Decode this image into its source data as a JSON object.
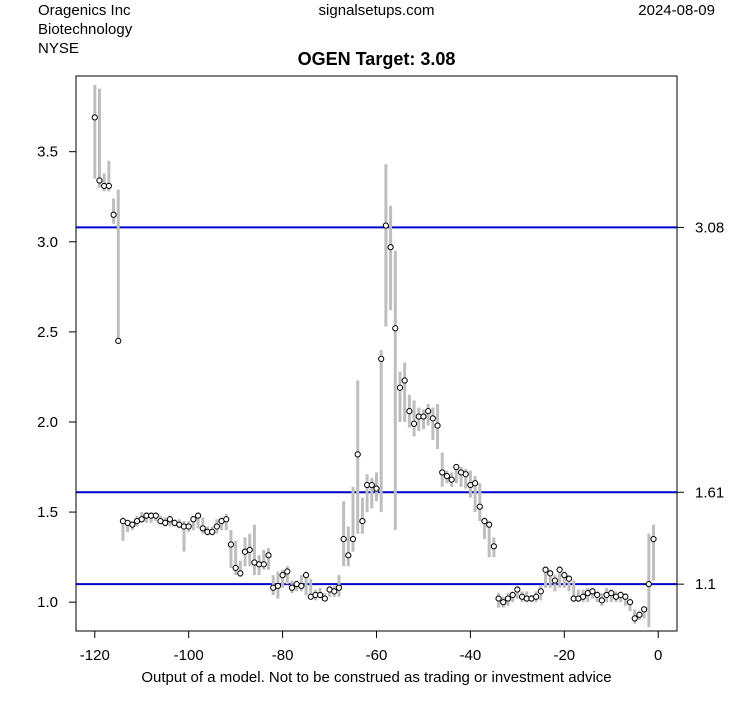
{
  "header": {
    "company": "Oragenics Inc",
    "sector": "Biotechnology",
    "exchange": "NYSE",
    "site": "signalsetups.com",
    "date": "2024-08-09"
  },
  "footer": {
    "caption": "Output of a model. Not to be construed as trading or investment advice"
  },
  "chart_data": {
    "type": "scatter",
    "title": "OGEN Target: 3.08",
    "xlabel": "",
    "ylabel": "",
    "xlim": [
      -124,
      4
    ],
    "ylim": [
      0.84,
      3.92
    ],
    "x_ticks": [
      -120,
      -100,
      -80,
      -60,
      -40,
      -20,
      0
    ],
    "y_ticks": [
      1.0,
      1.5,
      2.0,
      2.5,
      3.0,
      3.5
    ],
    "y_tick_labels": [
      "1.0",
      "1.5",
      "2.0",
      "2.5",
      "3.0",
      "3.5"
    ],
    "grid": false,
    "colors": {
      "range_bar": "#bebebe",
      "level_line": "#0000cd",
      "point": "#000000"
    },
    "levels": [
      {
        "value": 3.08,
        "label": "3.08"
      },
      {
        "value": 1.61,
        "label": "1.61"
      },
      {
        "value": 1.1,
        "label": "1.1"
      }
    ],
    "series": [
      {
        "x": [
          -120,
          -119,
          -118,
          -117,
          -116,
          -115,
          -114,
          -113,
          -112,
          -111,
          -110,
          -109,
          -108,
          -107,
          -106,
          -105,
          -104,
          -103,
          -102,
          -101,
          -100,
          -99,
          -98,
          -97,
          -96,
          -95,
          -94,
          -93,
          -92,
          -91,
          -90,
          -89,
          -88,
          -87,
          -86,
          -85,
          -84,
          -83,
          -82,
          -81,
          -80,
          -79,
          -78,
          -77,
          -76,
          -75,
          -74,
          -73,
          -72,
          -71,
          -70,
          -69,
          -68,
          -67,
          -66,
          -65,
          -64,
          -63,
          -62,
          -61,
          -60,
          -59,
          -58,
          -57,
          -56,
          -55,
          -54,
          -53,
          -52,
          -51,
          -50,
          -49,
          -48,
          -47,
          -46,
          -45,
          -44,
          -43,
          -42,
          -41,
          -40,
          -39,
          -38,
          -37,
          -36,
          -35,
          -34,
          -33,
          -32,
          -31,
          -30,
          -29,
          -28,
          -27,
          -26,
          -25,
          -24,
          -23,
          -22,
          -21,
          -20,
          -19,
          -18,
          -17,
          -16,
          -15,
          -14,
          -13,
          -12,
          -11,
          -10,
          -9,
          -8,
          -7,
          -6,
          -5,
          -4,
          -3,
          -2,
          -1
        ],
        "close": [
          3.69,
          3.34,
          3.31,
          3.31,
          3.15,
          2.45,
          1.45,
          1.44,
          1.43,
          1.45,
          1.46,
          1.48,
          1.48,
          1.48,
          1.45,
          1.44,
          1.46,
          1.44,
          1.43,
          1.42,
          1.42,
          1.46,
          1.48,
          1.41,
          1.39,
          1.39,
          1.42,
          1.45,
          1.46,
          1.32,
          1.19,
          1.16,
          1.28,
          1.29,
          1.22,
          1.21,
          1.21,
          1.26,
          1.08,
          1.09,
          1.15,
          1.17,
          1.08,
          1.1,
          1.09,
          1.15,
          1.03,
          1.04,
          1.04,
          1.02,
          1.07,
          1.06,
          1.08,
          1.35,
          1.26,
          1.35,
          1.82,
          1.45,
          1.65,
          1.65,
          1.63,
          2.35,
          3.09,
          2.97,
          2.52,
          2.19,
          2.23,
          2.06,
          1.99,
          2.03,
          2.03,
          2.06,
          2.02,
          1.98,
          1.72,
          1.7,
          1.68,
          1.75,
          1.72,
          1.71,
          1.65,
          1.66,
          1.53,
          1.45,
          1.43,
          1.31,
          1.02,
          1.0,
          1.02,
          1.04,
          1.07,
          1.03,
          1.02,
          1.02,
          1.03,
          1.06,
          1.18,
          1.16,
          1.12,
          1.18,
          1.15,
          1.13,
          1.02,
          1.02,
          1.03,
          1.05,
          1.06,
          1.04,
          1.01,
          1.04,
          1.05,
          1.03,
          1.04,
          1.03,
          1.0,
          0.91,
          0.93,
          0.96,
          1.1,
          1.35
        ],
        "low": [
          3.35,
          3.3,
          3.28,
          3.28,
          3.1,
          2.45,
          1.34,
          1.39,
          1.4,
          1.42,
          1.44,
          1.44,
          1.44,
          1.45,
          1.43,
          1.42,
          1.42,
          1.42,
          1.41,
          1.28,
          1.39,
          1.4,
          1.41,
          1.38,
          1.37,
          1.37,
          1.38,
          1.4,
          1.4,
          1.19,
          1.15,
          1.14,
          1.2,
          1.2,
          1.15,
          1.15,
          1.18,
          1.18,
          1.04,
          1.02,
          1.08,
          1.1,
          1.05,
          1.06,
          1.06,
          1.04,
          1.02,
          1.01,
          1.02,
          1.01,
          1.03,
          1.03,
          1.03,
          1.2,
          1.2,
          1.28,
          1.38,
          1.38,
          1.5,
          1.52,
          1.56,
          1.5,
          2.53,
          2.62,
          1.4,
          2.0,
          2.0,
          1.97,
          1.92,
          1.95,
          1.96,
          1.98,
          1.9,
          1.85,
          1.64,
          1.66,
          1.64,
          1.66,
          1.64,
          1.63,
          1.58,
          1.5,
          1.45,
          1.35,
          1.25,
          1.25,
          0.97,
          0.97,
          0.98,
          1.0,
          1.02,
          1.0,
          1.0,
          1.0,
          1.0,
          1.01,
          1.08,
          1.08,
          1.06,
          1.08,
          1.08,
          1.06,
          1.0,
          1.0,
          1.0,
          1.0,
          1.02,
          1.0,
          0.98,
          1.0,
          1.0,
          1.0,
          1.0,
          0.98,
          0.95,
          0.88,
          0.9,
          0.91,
          0.86,
          1.12
        ],
        "high": [
          3.87,
          3.85,
          3.38,
          3.45,
          3.24,
          3.29,
          1.47,
          1.45,
          1.45,
          1.48,
          1.5,
          1.5,
          1.5,
          1.5,
          1.48,
          1.47,
          1.48,
          1.46,
          1.46,
          1.45,
          1.45,
          1.48,
          1.5,
          1.47,
          1.42,
          1.42,
          1.46,
          1.47,
          1.49,
          1.4,
          1.34,
          1.23,
          1.36,
          1.38,
          1.43,
          1.26,
          1.29,
          1.3,
          1.15,
          1.17,
          1.18,
          1.2,
          1.12,
          1.12,
          1.15,
          1.17,
          1.13,
          1.07,
          1.08,
          1.05,
          1.09,
          1.09,
          1.15,
          1.56,
          1.42,
          1.64,
          2.23,
          1.58,
          1.71,
          1.69,
          1.72,
          2.4,
          3.43,
          3.2,
          2.95,
          2.28,
          2.33,
          2.15,
          2.12,
          2.08,
          2.07,
          2.1,
          2.08,
          2.1,
          1.83,
          1.73,
          1.72,
          1.76,
          1.75,
          1.74,
          1.73,
          1.7,
          1.66,
          1.47,
          1.45,
          1.36,
          1.05,
          1.03,
          1.05,
          1.06,
          1.09,
          1.06,
          1.06,
          1.04,
          1.06,
          1.09,
          1.2,
          1.18,
          1.15,
          1.2,
          1.17,
          1.15,
          1.12,
          1.07,
          1.07,
          1.08,
          1.08,
          1.06,
          1.05,
          1.08,
          1.07,
          1.06,
          1.06,
          1.05,
          1.02,
          0.96,
          0.95,
          0.97,
          1.38,
          1.43
        ]
      }
    ]
  }
}
